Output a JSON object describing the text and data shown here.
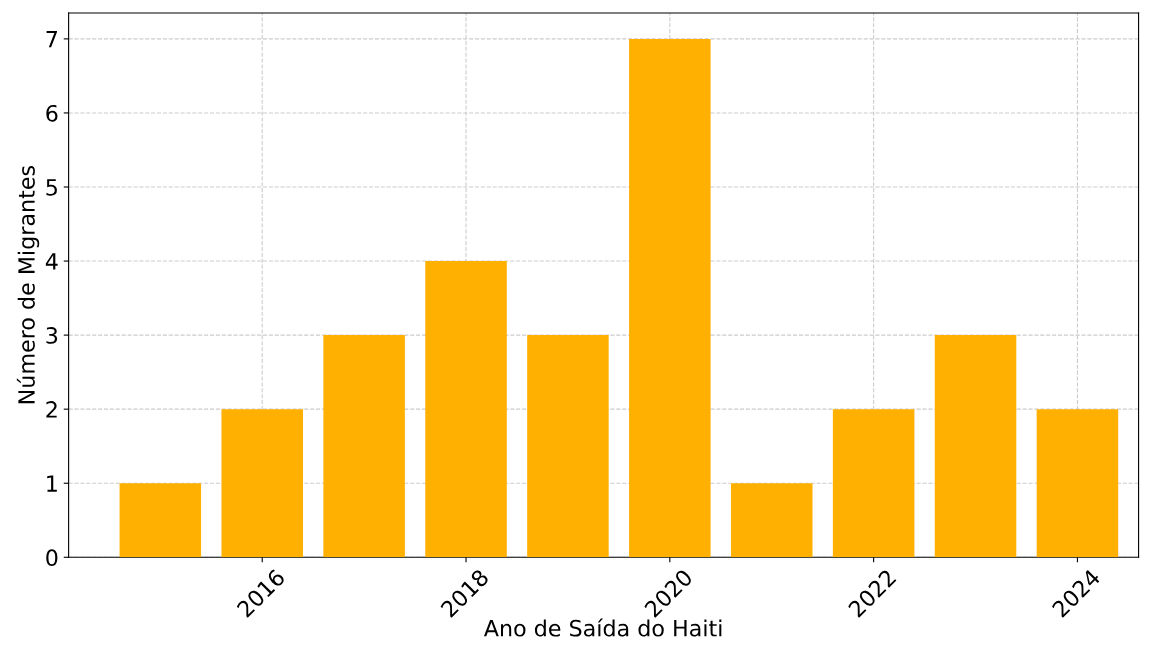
{
  "chart_data": {
    "type": "bar",
    "xlabel": "Ano de Saída do Haiti",
    "ylabel": "Número de Migrantes",
    "x": [
      2015,
      2016,
      2017,
      2018,
      2019,
      2020,
      2021,
      2022,
      2023,
      2024
    ],
    "values": [
      1,
      2,
      3,
      4,
      3,
      7,
      1,
      2,
      3,
      2
    ],
    "color": "#ffb000",
    "xlim": [
      2014.1,
      2024.6
    ],
    "xticks": [
      2016,
      2018,
      2020,
      2022,
      2024
    ],
    "ylim": [
      0,
      7.35
    ],
    "yticks": [
      0,
      1,
      2,
      3,
      4,
      5,
      6,
      7
    ],
    "grid": true
  }
}
